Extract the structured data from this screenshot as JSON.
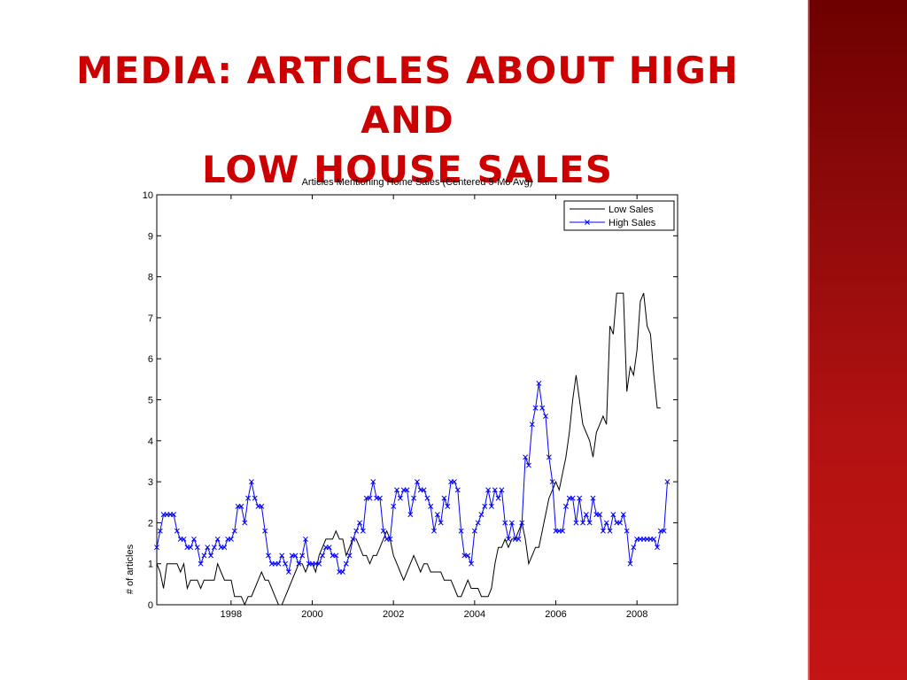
{
  "slide": {
    "title_line1": "MEDIA: ARTICLES ABOUT HIGH AND",
    "title_line2": "LOW HOUSE SALES",
    "title_color": "#cc0000",
    "sidebar_color": "#a00d0d"
  },
  "chart_data": {
    "type": "line",
    "title": "Articles Mentioning Home Sales (Centered 5-Mo Avg)",
    "xlabel": "",
    "ylabel": "# of articles",
    "xlim": [
      1996.17,
      2009.0
    ],
    "ylim": [
      0,
      10
    ],
    "xticks": [
      1998,
      2000,
      2002,
      2004,
      2006,
      2008
    ],
    "yticks": [
      0,
      1,
      2,
      3,
      4,
      5,
      6,
      7,
      8,
      9,
      10
    ],
    "grid": false,
    "legend_position": "top-right",
    "x_start": 1996.17,
    "x_step": 0.0833,
    "series": [
      {
        "name": "Low Sales",
        "color": "#000000",
        "marker": "none",
        "values": [
          1.0,
          0.8,
          0.4,
          1.0,
          1.0,
          1.0,
          1.0,
          0.8,
          1.0,
          0.4,
          0.6,
          0.6,
          0.6,
          0.4,
          0.6,
          0.6,
          0.6,
          0.6,
          1.0,
          0.8,
          0.6,
          0.6,
          0.6,
          0.2,
          0.2,
          0.2,
          0.0,
          0.2,
          0.2,
          0.4,
          0.6,
          0.8,
          0.6,
          0.6,
          0.4,
          0.2,
          0.0,
          0.0,
          0.2,
          0.4,
          0.6,
          0.8,
          1.0,
          1.0,
          0.8,
          1.0,
          1.0,
          0.8,
          1.2,
          1.4,
          1.6,
          1.6,
          1.6,
          1.8,
          1.6,
          1.6,
          1.2,
          1.4,
          1.6,
          1.6,
          1.4,
          1.2,
          1.2,
          1.0,
          1.2,
          1.2,
          1.4,
          1.6,
          1.8,
          1.6,
          1.2,
          1.0,
          0.8,
          0.6,
          0.8,
          1.0,
          1.2,
          1.0,
          0.8,
          1.0,
          1.0,
          0.8,
          0.8,
          0.8,
          0.8,
          0.6,
          0.6,
          0.6,
          0.4,
          0.2,
          0.2,
          0.4,
          0.6,
          0.4,
          0.4,
          0.4,
          0.2,
          0.2,
          0.2,
          0.4,
          1.0,
          1.4,
          1.4,
          1.6,
          1.4,
          1.6,
          1.6,
          1.8,
          2.0,
          1.6,
          1.0,
          1.2,
          1.4,
          1.4,
          1.8,
          2.2,
          2.6,
          2.8,
          3.0,
          2.8,
          3.2,
          3.6,
          4.2,
          5.0,
          5.6,
          5.0,
          4.4,
          4.2,
          4.0,
          3.6,
          4.2,
          4.4,
          4.6,
          4.4,
          6.8,
          6.6,
          7.6,
          7.6,
          7.6,
          5.2,
          5.8,
          5.6,
          6.2,
          7.4,
          7.6,
          6.8,
          6.6,
          5.6,
          4.8,
          4.8
        ]
      },
      {
        "name": "High Sales",
        "color": "#0000ff",
        "marker": "x",
        "values": [
          1.4,
          1.8,
          2.2,
          2.2,
          2.2,
          2.2,
          1.8,
          1.6,
          1.6,
          1.4,
          1.4,
          1.6,
          1.4,
          1.0,
          1.2,
          1.4,
          1.2,
          1.4,
          1.6,
          1.4,
          1.4,
          1.6,
          1.6,
          1.8,
          2.4,
          2.4,
          2.0,
          2.6,
          3.0,
          2.6,
          2.4,
          2.4,
          1.8,
          1.2,
          1.0,
          1.0,
          1.0,
          1.2,
          1.0,
          0.8,
          1.2,
          1.2,
          1.0,
          1.2,
          1.6,
          1.0,
          1.0,
          1.0,
          1.0,
          1.2,
          1.4,
          1.4,
          1.2,
          1.2,
          0.8,
          0.8,
          1.0,
          1.2,
          1.6,
          1.8,
          2.0,
          1.8,
          2.6,
          2.6,
          3.0,
          2.6,
          2.6,
          1.8,
          1.6,
          1.6,
          2.4,
          2.8,
          2.6,
          2.8,
          2.8,
          2.2,
          2.6,
          3.0,
          2.8,
          2.8,
          2.6,
          2.4,
          1.8,
          2.2,
          2.0,
          2.6,
          2.4,
          3.0,
          3.0,
          2.8,
          1.8,
          1.2,
          1.2,
          1.0,
          1.8,
          2.0,
          2.2,
          2.4,
          2.8,
          2.4,
          2.8,
          2.6,
          2.8,
          2.0,
          1.6,
          2.0,
          1.6,
          1.6,
          2.0,
          3.6,
          3.4,
          4.4,
          4.8,
          5.4,
          4.8,
          4.6,
          3.6,
          3.0,
          1.8,
          1.8,
          1.8,
          2.4,
          2.6,
          2.6,
          2.0,
          2.6,
          2.0,
          2.2,
          2.0,
          2.6,
          2.2,
          2.2,
          1.8,
          2.0,
          1.8,
          2.2,
          2.0,
          2.0,
          2.2,
          1.8,
          1.0,
          1.4,
          1.6,
          1.6,
          1.6,
          1.6,
          1.6,
          1.6,
          1.4,
          1.8,
          1.8,
          3.0
        ]
      }
    ]
  }
}
